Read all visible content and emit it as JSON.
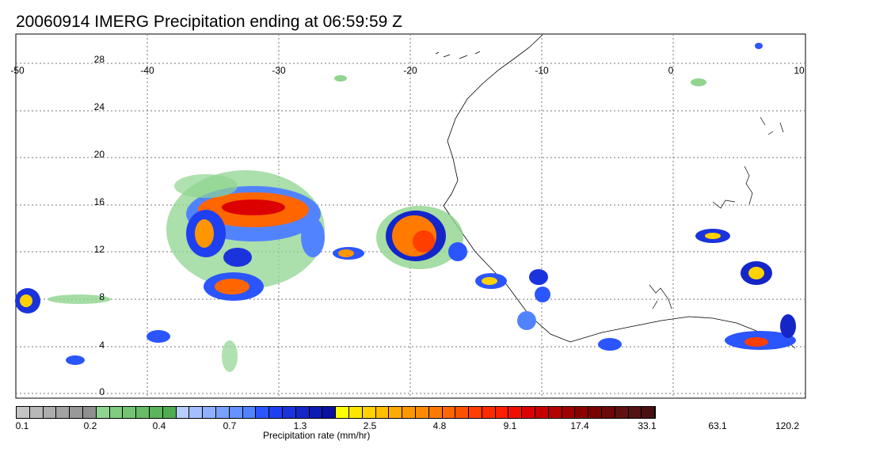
{
  "title": "20060914 IMERG Precipitation ending at 06:59:59 Z",
  "map": {
    "lon_labels": [
      "-50",
      "-40",
      "-30",
      "-20",
      "-10",
      "0",
      "10"
    ],
    "lat_labels": [
      "28",
      "24",
      "20",
      "16",
      "12",
      "8",
      "4",
      "0"
    ],
    "lon_range": [
      -50,
      10
    ],
    "lat_range": [
      -1,
      30
    ],
    "gridlines": "dotted"
  },
  "colorbar": {
    "label": "Precipitation rate (mm/hr)",
    "tick_labels": [
      "0.1",
      "0.2",
      "0.4",
      "0.7",
      "1.3",
      "2.5",
      "4.8",
      "9.1",
      "17.4",
      "33.1",
      "63.1",
      "120.2"
    ],
    "colors": [
      "#c4c4c4",
      "#b8b8b8",
      "#adadad",
      "#a3a3a3",
      "#999999",
      "#8f8f8f",
      "#8fd48f",
      "#80cc80",
      "#74c474",
      "#68bc68",
      "#5cb45c",
      "#50ac50",
      "#b8ccff",
      "#a3bfff",
      "#8fb0ff",
      "#7aa1ff",
      "#6692ff",
      "#5283ff",
      "#2b55ff",
      "#1f40f0",
      "#1a33dd",
      "#1426c8",
      "#0e1ab4",
      "#0a10a0",
      "#ffff00",
      "#ffe600",
      "#ffd200",
      "#ffbe00",
      "#ffaa00",
      "#ff9600",
      "#ff8c00",
      "#ff7a00",
      "#ff6600",
      "#ff5200",
      "#ff3e00",
      "#ff2a00",
      "#ff1e00",
      "#f01000",
      "#dc0000",
      "#c80000",
      "#b40000",
      "#a00000",
      "#8c0000",
      "#7a0000",
      "#6c0808",
      "#601010",
      "#541212",
      "#481010"
    ]
  }
}
